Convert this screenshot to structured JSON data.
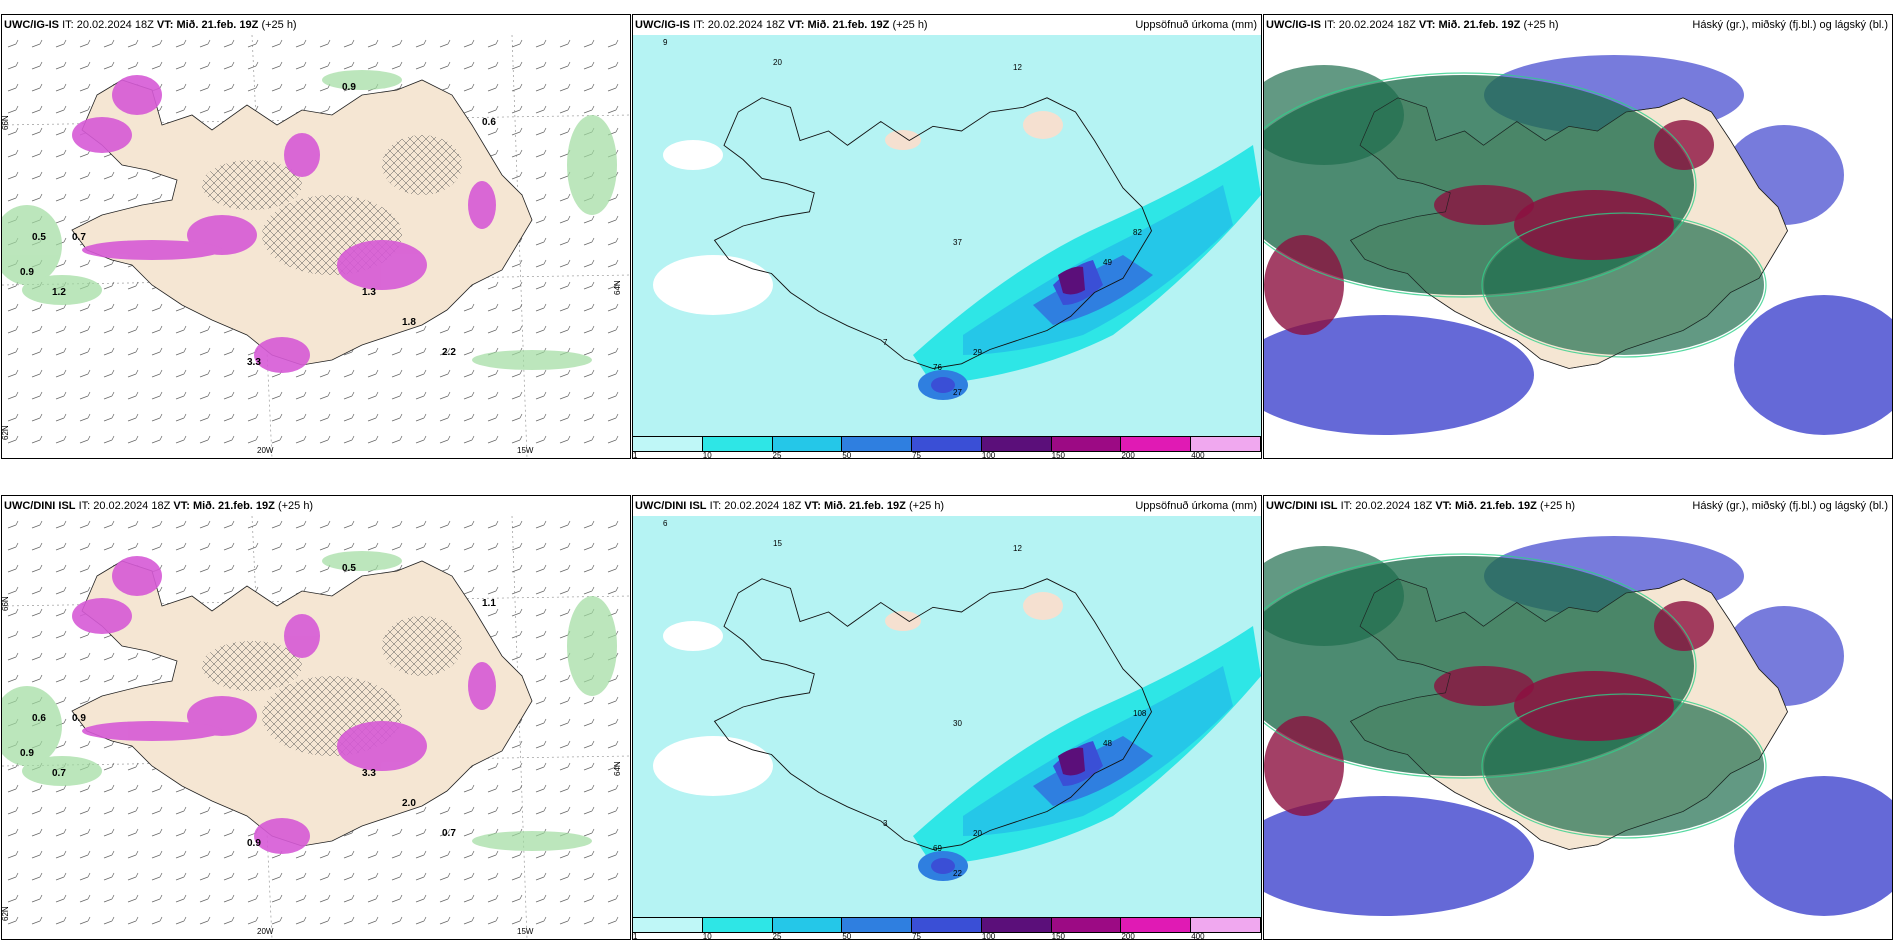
{
  "panels": [
    {
      "model": "UWC/IG-IS",
      "it_label": "IT:",
      "it_value": "20.02.2024 18Z",
      "vt_label": "VT:",
      "vt_value": "Mið. 21.feb. 19Z",
      "lead": "(+25 h)",
      "right_label": "",
      "kind": "wind",
      "lon_labels": [
        "20W",
        "15W"
      ],
      "lat_labels": [
        "66N",
        "64N",
        "62N"
      ],
      "values": [
        "0.9",
        "0.5",
        "0.7",
        "1.2",
        "0.6",
        "0.9",
        "1.3",
        "1.8",
        "2.2",
        "3.3"
      ]
    },
    {
      "model": "UWC/IG-IS",
      "it_label": "IT:",
      "it_value": "20.02.2024 18Z",
      "vt_label": "VT:",
      "vt_value": "Mið. 21.feb. 19Z",
      "lead": "(+25 h)",
      "right_label": "Uppsöfnuð úrkoma (mm)",
      "kind": "precip",
      "values": [
        "9",
        "7",
        "12",
        "20",
        "37",
        "49",
        "82",
        "76",
        "29",
        "27"
      ]
    },
    {
      "model": "UWC/IG-IS",
      "it_label": "IT:",
      "it_value": "20.02.2024 18Z",
      "vt_label": "VT:",
      "vt_value": "Mið. 21.feb. 19Z",
      "lead": "(+25 h)",
      "right_label": "Háský (gr.), miðský (fj.bl.) og lágský (bl.)",
      "kind": "cloud"
    },
    {
      "model": "UWC/DINI ISL",
      "it_label": "IT:",
      "it_value": "20.02.2024 18Z",
      "vt_label": "VT:",
      "vt_value": "Mið. 21.feb. 19Z",
      "lead": "(+25 h)",
      "right_label": "",
      "kind": "wind",
      "lon_labels": [
        "20W",
        "15W"
      ],
      "lat_labels": [
        "66N",
        "64N",
        "62N"
      ],
      "values": [
        "0.5",
        "0.6",
        "0.9",
        "0.7",
        "1.1",
        "0.9",
        "3.3",
        "2.0",
        "0.7",
        "0.9"
      ]
    },
    {
      "model": "UWC/DINI ISL",
      "it_label": "IT:",
      "it_value": "20.02.2024 18Z",
      "vt_label": "VT:",
      "vt_value": "Mið. 21.feb. 19Z",
      "lead": "(+25 h)",
      "right_label": "Uppsöfnuð úrkoma (mm)",
      "kind": "precip",
      "values": [
        "6",
        "3",
        "12",
        "15",
        "30",
        "48",
        "108",
        "69",
        "20",
        "22"
      ]
    },
    {
      "model": "UWC/DINI ISL",
      "it_label": "IT:",
      "it_value": "20.02.2024 18Z",
      "vt_label": "VT:",
      "vt_value": "Mið. 21.feb. 19Z",
      "lead": "(+25 h)",
      "right_label": "Háský (gr.), miðský (fj.bl.) og lágský (bl.)",
      "kind": "cloud"
    }
  ],
  "colorbar": {
    "labels": [
      "1",
      "10",
      "25",
      "50",
      "75",
      "100",
      "150",
      "200",
      "400"
    ],
    "colors": [
      "#bff7f7",
      "#2ee6e6",
      "#25c7e8",
      "#2f7fe0",
      "#3a4fd6",
      "#5b0f7a",
      "#9c0a84",
      "#e01ab4",
      "#f0a8ef"
    ]
  },
  "colors": {
    "land": "#f5e6d3",
    "sea_precip": "#b5f3f3",
    "wind_pink": "#d65ad6",
    "cloud_high": "#1f6e4e",
    "cloud_mid": "#8c1040",
    "cloud_low": "#4a4fd0"
  }
}
